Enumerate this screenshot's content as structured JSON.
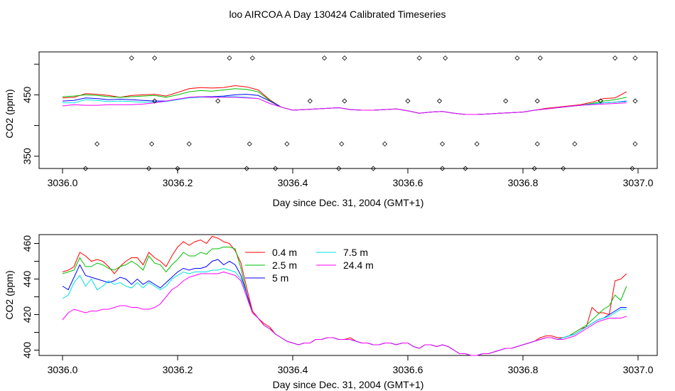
{
  "title": "loo AIRCOA A  Day 130424  Calibrated Timeseries",
  "colors": {
    "0.4 m": "#ff0000",
    "2.5 m": "#00c000",
    "5 m": "#0000ff",
    "7.5 m": "#00e0e0",
    "24.4 m": "#ff00ff"
  },
  "chart_data": [
    {
      "type": "line",
      "title": "",
      "xlabel": "Day since Dec. 31, 2004 (GMT+1)",
      "ylabel": "CO2 (ppm)",
      "xlim": [
        3036.0,
        3037.0
      ],
      "ylim": [
        330,
        520
      ],
      "xticks": [
        "3036.0",
        "3036.2",
        "3036.4",
        "3036.6",
        "3036.8",
        "3037.0"
      ],
      "yticks": [
        "350",
        "450"
      ],
      "grid": false,
      "legend": "none",
      "x": [
        3036.0,
        3036.02,
        3036.04,
        3036.06,
        3036.08,
        3036.1,
        3036.12,
        3036.14,
        3036.16,
        3036.18,
        3036.2,
        3036.22,
        3036.24,
        3036.26,
        3036.28,
        3036.3,
        3036.32,
        3036.34,
        3036.36,
        3036.38,
        3036.4,
        3036.42,
        3036.44,
        3036.46,
        3036.48,
        3036.5,
        3036.52,
        3036.54,
        3036.56,
        3036.58,
        3036.6,
        3036.62,
        3036.64,
        3036.66,
        3036.68,
        3036.7,
        3036.72,
        3036.74,
        3036.76,
        3036.78,
        3036.8,
        3036.82,
        3036.84,
        3036.86,
        3036.88,
        3036.9,
        3036.92,
        3036.94,
        3036.96,
        3036.98
      ],
      "series": [
        {
          "name": "0.4 m",
          "values": [
            445,
            446,
            452,
            451,
            449,
            446,
            449,
            450,
            451,
            448,
            454,
            460,
            462,
            461,
            462,
            465,
            463,
            458,
            442,
            430,
            425,
            426,
            427,
            428,
            429,
            426,
            425,
            425,
            426,
            427,
            424,
            420,
            422,
            423,
            420,
            418,
            418,
            419,
            420,
            421,
            422,
            425,
            428,
            430,
            432,
            434,
            438,
            444,
            445,
            455
          ]
        },
        {
          "name": "2.5 m",
          "values": [
            447,
            448,
            450,
            449,
            447,
            446,
            447,
            448,
            449,
            446,
            450,
            455,
            457,
            456,
            458,
            460,
            459,
            455,
            441,
            430,
            425,
            426,
            427,
            428,
            429,
            426,
            425,
            425,
            426,
            427,
            424,
            420,
            422,
            423,
            420,
            418,
            418,
            419,
            420,
            421,
            422,
            425,
            427,
            429,
            431,
            433,
            436,
            440,
            442,
            446
          ]
        },
        {
          "name": "5 m",
          "values": [
            440,
            441,
            445,
            444,
            442,
            443,
            442,
            441,
            440,
            440,
            443,
            446,
            447,
            447,
            448,
            450,
            451,
            449,
            440,
            430,
            425,
            426,
            427,
            428,
            429,
            426,
            425,
            425,
            426,
            427,
            424,
            420,
            422,
            423,
            420,
            418,
            418,
            419,
            420,
            421,
            422,
            425,
            427,
            429,
            431,
            433,
            435,
            437,
            438,
            440
          ]
        },
        {
          "name": "7.5 m",
          "values": [
            437,
            437,
            442,
            441,
            439,
            440,
            439,
            438,
            438,
            439,
            442,
            445,
            446,
            446,
            447,
            447,
            446,
            444,
            436,
            430,
            425,
            426,
            427,
            428,
            429,
            426,
            425,
            425,
            426,
            427,
            424,
            420,
            422,
            423,
            420,
            418,
            418,
            419,
            420,
            421,
            422,
            425,
            427,
            429,
            431,
            433,
            435,
            437,
            438,
            439
          ]
        },
        {
          "name": "24.4 m",
          "values": [
            432,
            434,
            433,
            433,
            434,
            434,
            434,
            435,
            437,
            440,
            443,
            446,
            447,
            446,
            446,
            446,
            445,
            444,
            436,
            430,
            425,
            426,
            427,
            428,
            429,
            426,
            425,
            425,
            426,
            427,
            424,
            420,
            422,
            423,
            420,
            418,
            418,
            419,
            420,
            421,
            422,
            425,
            427,
            429,
            431,
            433,
            434,
            435,
            436,
            437
          ]
        }
      ],
      "markers": {
        "x": [
          3036.04,
          3036.06,
          3036.12,
          3036.15,
          3036.155,
          3036.16,
          3036.16,
          3036.2,
          3036.22,
          3036.27,
          3036.29,
          3036.32,
          3036.325,
          3036.33,
          3036.37,
          3036.39,
          3036.43,
          3036.455,
          3036.48,
          3036.485,
          3036.49,
          3036.49,
          3036.54,
          3036.56,
          3036.6,
          3036.62,
          3036.655,
          3036.66,
          3036.66,
          3036.665,
          3036.7,
          3036.72,
          3036.77,
          3036.79,
          3036.82,
          3036.825,
          3036.825,
          3036.83,
          3036.87,
          3036.89,
          3036.935,
          3036.96,
          3036.99,
          3036.995,
          3036.995,
          3036.995
        ],
        "values": [
          330,
          370,
          510,
          330,
          370,
          440,
          510,
          330,
          370,
          440,
          510,
          330,
          370,
          510,
          330,
          370,
          440,
          510,
          330,
          370,
          440,
          510,
          330,
          370,
          440,
          510,
          440,
          330,
          370,
          510,
          330,
          370,
          440,
          510,
          330,
          370,
          440,
          510,
          330,
          370,
          440,
          510,
          330,
          370,
          440,
          510
        ]
      }
    },
    {
      "type": "line",
      "title": "",
      "xlabel": "Day since Dec. 31, 2004 (GMT+1)",
      "ylabel": "CO2 (ppm)",
      "xlim": [
        3036.0,
        3037.0
      ],
      "ylim": [
        397,
        465
      ],
      "xticks": [
        "3036.0",
        "3036.2",
        "3036.4",
        "3036.6",
        "3036.8",
        "3037.0"
      ],
      "yticks": [
        "400",
        "420",
        "440",
        "460"
      ],
      "grid": false,
      "legend": "top-center",
      "x": [
        3036.0,
        3036.01,
        3036.02,
        3036.03,
        3036.04,
        3036.05,
        3036.06,
        3036.07,
        3036.08,
        3036.09,
        3036.1,
        3036.11,
        3036.12,
        3036.13,
        3036.14,
        3036.15,
        3036.16,
        3036.17,
        3036.18,
        3036.19,
        3036.2,
        3036.21,
        3036.22,
        3036.23,
        3036.24,
        3036.25,
        3036.26,
        3036.27,
        3036.28,
        3036.29,
        3036.3,
        3036.31,
        3036.32,
        3036.33,
        3036.34,
        3036.35,
        3036.36,
        3036.37,
        3036.38,
        3036.39,
        3036.4,
        3036.41,
        3036.42,
        3036.43,
        3036.44,
        3036.45,
        3036.46,
        3036.47,
        3036.48,
        3036.49,
        3036.5,
        3036.51,
        3036.52,
        3036.53,
        3036.54,
        3036.55,
        3036.56,
        3036.57,
        3036.58,
        3036.59,
        3036.6,
        3036.61,
        3036.62,
        3036.63,
        3036.64,
        3036.65,
        3036.66,
        3036.67,
        3036.68,
        3036.69,
        3036.7,
        3036.71,
        3036.72,
        3036.73,
        3036.74,
        3036.75,
        3036.76,
        3036.77,
        3036.78,
        3036.79,
        3036.8,
        3036.81,
        3036.82,
        3036.83,
        3036.84,
        3036.85,
        3036.86,
        3036.87,
        3036.88,
        3036.89,
        3036.9,
        3036.91,
        3036.92,
        3036.93,
        3036.94,
        3036.95,
        3036.96,
        3036.97,
        3036.98
      ],
      "series": [
        {
          "name": "0.4 m",
          "values": [
            444,
            445,
            447,
            455,
            453,
            450,
            451,
            450,
            447,
            443,
            447,
            450,
            452,
            452,
            448,
            455,
            452,
            450,
            447,
            453,
            458,
            461,
            459,
            461,
            462,
            460,
            464,
            463,
            461,
            460,
            456,
            449,
            435,
            422,
            418,
            415,
            413,
            409,
            407,
            405,
            404,
            403,
            404,
            404,
            406,
            406,
            407,
            407,
            406,
            406,
            407,
            405,
            404,
            404,
            403,
            403,
            404,
            404,
            403,
            404,
            404,
            402,
            401,
            403,
            403,
            402,
            403,
            402,
            400,
            398,
            398,
            397,
            397,
            398,
            398,
            399,
            400,
            401,
            401,
            402,
            403,
            404,
            405,
            407,
            408,
            408,
            407,
            407,
            408,
            410,
            412,
            413,
            424,
            421,
            421,
            420,
            439,
            440,
            443
          ]
        },
        {
          "name": "2.5 m",
          "values": [
            443,
            444,
            445,
            452,
            447,
            447,
            449,
            448,
            446,
            445,
            447,
            448,
            450,
            448,
            445,
            453,
            449,
            448,
            444,
            448,
            451,
            455,
            453,
            453,
            455,
            454,
            457,
            457,
            458,
            458,
            457,
            446,
            432,
            421,
            418,
            414,
            412,
            409,
            407,
            405,
            404,
            403,
            404,
            404,
            406,
            406,
            407,
            407,
            406,
            406,
            406,
            405,
            404,
            404,
            403,
            403,
            404,
            404,
            403,
            404,
            404,
            402,
            401,
            403,
            403,
            402,
            403,
            402,
            400,
            398,
            398,
            397,
            397,
            398,
            398,
            399,
            400,
            401,
            401,
            402,
            403,
            404,
            405,
            406,
            407,
            407,
            406,
            407,
            408,
            410,
            412,
            414,
            417,
            420,
            423,
            425,
            431,
            428,
            436
          ]
        },
        {
          "name": "5 m",
          "values": [
            436,
            434,
            441,
            448,
            442,
            441,
            440,
            439,
            438,
            439,
            441,
            440,
            437,
            440,
            437,
            439,
            437,
            435,
            438,
            441,
            444,
            446,
            445,
            446,
            446,
            447,
            450,
            451,
            448,
            450,
            448,
            442,
            432,
            421,
            418,
            414,
            412,
            409,
            407,
            405,
            404,
            403,
            404,
            404,
            406,
            406,
            407,
            407,
            406,
            406,
            406,
            405,
            404,
            404,
            403,
            403,
            404,
            404,
            403,
            404,
            404,
            402,
            401,
            403,
            403,
            402,
            403,
            402,
            400,
            398,
            398,
            397,
            397,
            398,
            398,
            399,
            400,
            401,
            401,
            402,
            403,
            404,
            405,
            406,
            407,
            407,
            406,
            407,
            408,
            409,
            411,
            413,
            415,
            417,
            418,
            420,
            422,
            424,
            424
          ]
        },
        {
          "name": "7.5 m",
          "values": [
            429,
            431,
            438,
            442,
            436,
            440,
            434,
            436,
            439,
            437,
            438,
            436,
            435,
            438,
            435,
            438,
            436,
            434,
            436,
            440,
            442,
            444,
            443,
            444,
            444,
            444,
            445,
            445,
            446,
            445,
            444,
            440,
            430,
            421,
            418,
            414,
            412,
            409,
            407,
            405,
            404,
            403,
            404,
            404,
            406,
            406,
            407,
            407,
            406,
            406,
            406,
            405,
            404,
            404,
            403,
            403,
            404,
            404,
            403,
            404,
            404,
            402,
            401,
            403,
            403,
            402,
            403,
            402,
            400,
            398,
            398,
            397,
            397,
            398,
            398,
            399,
            400,
            401,
            401,
            402,
            403,
            404,
            405,
            406,
            407,
            407,
            406,
            407,
            408,
            409,
            411,
            413,
            415,
            417,
            418,
            419,
            421,
            423,
            423
          ]
        },
        {
          "name": "24.4 m",
          "values": [
            417,
            421,
            423,
            422,
            421,
            422,
            422,
            423,
            423,
            424,
            425,
            425,
            424,
            424,
            423,
            423,
            424,
            426,
            430,
            434,
            436,
            439,
            441,
            442,
            443,
            443,
            443,
            443,
            444,
            443,
            442,
            439,
            430,
            421,
            418,
            414,
            412,
            409,
            407,
            405,
            404,
            403,
            404,
            404,
            406,
            406,
            407,
            407,
            406,
            406,
            406,
            405,
            404,
            404,
            403,
            403,
            404,
            404,
            403,
            404,
            404,
            402,
            401,
            403,
            403,
            402,
            403,
            402,
            400,
            398,
            398,
            397,
            397,
            398,
            398,
            399,
            400,
            401,
            401,
            402,
            403,
            404,
            405,
            406,
            407,
            407,
            406,
            406,
            407,
            408,
            410,
            412,
            414,
            416,
            417,
            418,
            418,
            418,
            419
          ]
        }
      ]
    }
  ]
}
